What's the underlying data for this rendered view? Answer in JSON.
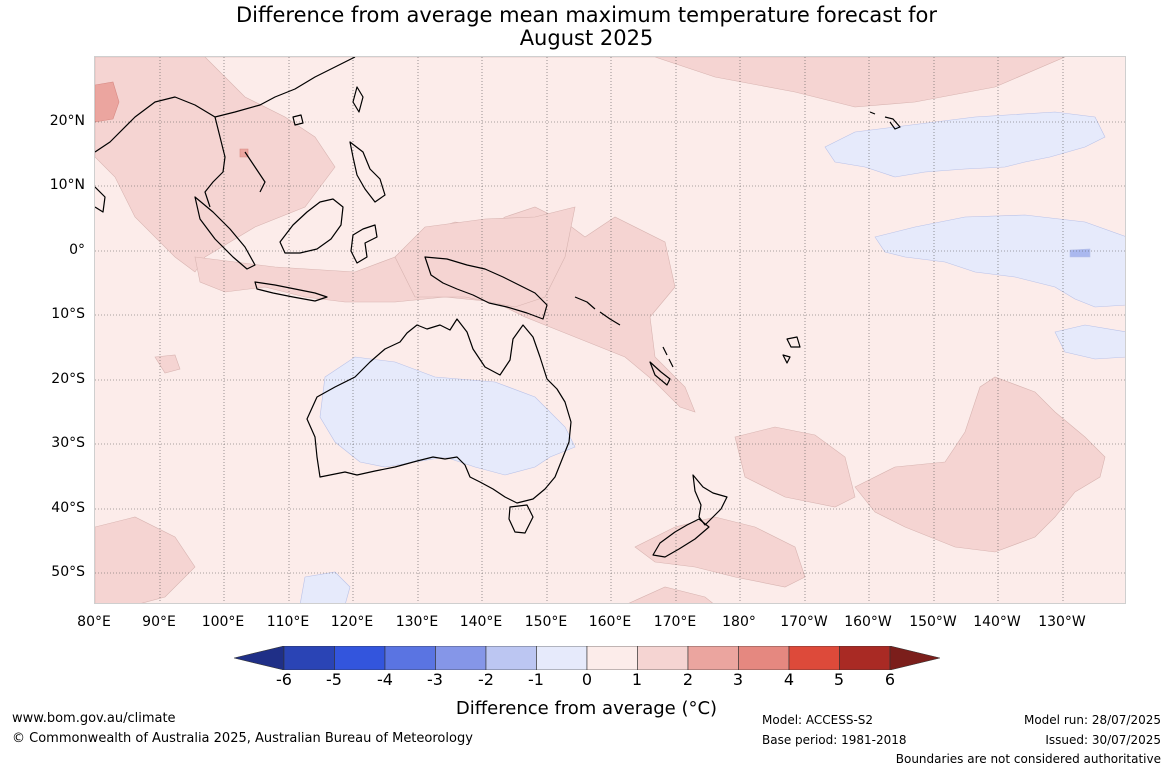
{
  "title_line1": "Difference from average mean maximum temperature forecast for",
  "title_line2": "August 2025",
  "lat_labels": [
    "20°N",
    "10°N",
    "0°",
    "10°S",
    "20°S",
    "30°S",
    "40°S",
    "50°S"
  ],
  "lon_labels": [
    "80°E",
    "90°E",
    "100°E",
    "110°E",
    "120°E",
    "130°E",
    "140°E",
    "150°E",
    "160°E",
    "170°E",
    "180°",
    "170°W",
    "160°W",
    "150°W",
    "140°W",
    "130°W"
  ],
  "legend": {
    "label": "Difference from average (°C)",
    "ticks": [
      "-6",
      "-5",
      "-4",
      "-3",
      "-2",
      "-1",
      "0",
      "1",
      "2",
      "3",
      "4",
      "5",
      "6"
    ],
    "colors": [
      "#1f2f87",
      "#2a44b5",
      "#3355dd",
      "#5a74e2",
      "#8596e8",
      "#bcc6f2",
      "#e6eafb",
      "#fcecea",
      "#f5d4d2",
      "#eba59f",
      "#e58880",
      "#dd4a3a",
      "#a92a24",
      "#7b1e1b"
    ]
  },
  "footer": {
    "website": "www.bom.gov.au/climate",
    "copyright": "© Commonwealth of Australia 2025, Australian Bureau of Meteorology",
    "model": "Model: ACCESS-S2",
    "base_period": "Base period: 1981-2018",
    "model_run": "Model run: 28/07/2025",
    "issued": "Issued: 30/07/2025",
    "disclaimer": "Boundaries are not considered authoritative"
  }
}
